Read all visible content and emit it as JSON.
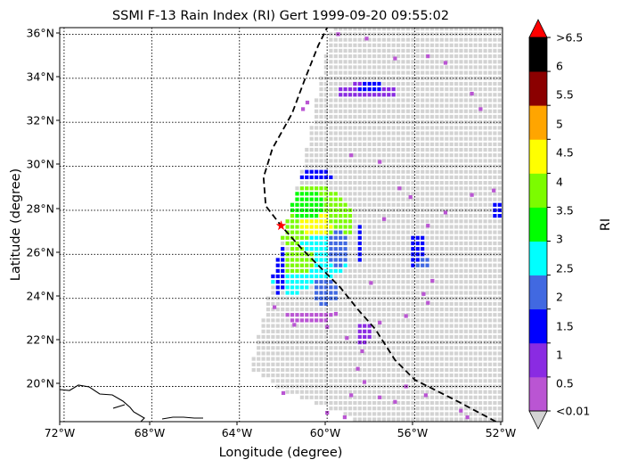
{
  "title": "SSMI F-13 Rain Index (RI) Gert 1999-09-20 09:55:02",
  "xlabel": "Longitude (degree)",
  "ylabel": "Latitude (degree)",
  "colorbar_label": "RI",
  "x_ticks": [
    "72°W",
    "68°W",
    "64°W",
    "60°W",
    "56°W",
    "52°W"
  ],
  "y_ticks": [
    "20°N",
    "22°N",
    "24°N",
    "26°N",
    "28°N",
    "30°N",
    "32°N",
    "34°N",
    "36°N"
  ],
  "colorbar_ticks": [
    "<0.01",
    "0.5",
    "1",
    "1.5",
    "2",
    "2.5",
    "3",
    "3.5",
    "4",
    "4.5",
    "5",
    "5.5",
    "6",
    ">6.5"
  ],
  "colors": {
    "swath_background": "#d3d3d3",
    "storm_marker": "#ff0000",
    "track_line": "#000000"
  },
  "chart_data": {
    "type": "map",
    "projection": "plate-carree",
    "lon_range": [
      -72.2,
      -52.0
    ],
    "lat_range": [
      18.4,
      36.3
    ],
    "grid": true,
    "colorbar": {
      "bins": [
        {
          "range": "<0.01",
          "color": "#d3d3d3"
        },
        {
          "range": "0.01-0.5",
          "color": "#ba55d3"
        },
        {
          "range": "0.5-1",
          "color": "#8a2be2"
        },
        {
          "range": "1-1.5",
          "color": "#0000ff"
        },
        {
          "range": "1.5-2",
          "color": "#4169e1"
        },
        {
          "range": "2-2.5",
          "color": "#00ffff"
        },
        {
          "range": "2.5-3",
          "color": "#00ff00"
        },
        {
          "range": "3-3.5",
          "color": "#7cfc00"
        },
        {
          "range": "3.5-4",
          "color": "#ffff00"
        },
        {
          "range": "4-4.5",
          "color": "#ffa500"
        },
        {
          "range": "4.5-5",
          "color": "#8b0000"
        },
        {
          "range": "5-6.5",
          "color": "#000000"
        },
        {
          "range": ">6.5",
          "color": "#ff0000"
        }
      ]
    },
    "storm_center": {
      "lon": -62.1,
      "lat": 27.3
    },
    "track": [
      {
        "lon": -52.3,
        "lat": 18.4
      },
      {
        "lon": -54.0,
        "lat": 19.3
      },
      {
        "lon": -56.0,
        "lat": 20.3
      },
      {
        "lon": -56.9,
        "lat": 21.2
      },
      {
        "lon": -57.8,
        "lat": 22.6
      },
      {
        "lon": -58.6,
        "lat": 23.5
      },
      {
        "lon": -59.4,
        "lat": 24.5
      },
      {
        "lon": -60.3,
        "lat": 25.4
      },
      {
        "lon": -61.2,
        "lat": 26.3
      },
      {
        "lon": -62.1,
        "lat": 27.3
      },
      {
        "lon": -62.8,
        "lat": 28.2
      },
      {
        "lon": -62.9,
        "lat": 29.5
      },
      {
        "lon": -62.5,
        "lat": 30.8
      },
      {
        "lon": -61.6,
        "lat": 32.4
      },
      {
        "lon": -61.0,
        "lat": 34.0
      },
      {
        "lon": -60.4,
        "lat": 35.5
      },
      {
        "lon": -60.0,
        "lat": 36.3
      }
    ],
    "swath_corners": [
      {
        "lon": -59.8,
        "lat": 36.3
      },
      {
        "lon": -52.0,
        "lat": 36.3
      },
      {
        "lon": -52.0,
        "lat": 18.4
      },
      {
        "lon": -54.5,
        "lat": 18.4
      },
      {
        "lon": -58.5,
        "lat": 18.4
      },
      {
        "lon": -62.0,
        "lat": 19.8
      },
      {
        "lon": -63.5,
        "lat": 20.8
      },
      {
        "lon": -62.0,
        "lat": 27.0
      },
      {
        "lon": -61.0,
        "lat": 30.5
      },
      {
        "lon": -60.5,
        "lat": 33.0
      }
    ],
    "rain_regions": [
      {
        "lon": -60.6,
        "lat": 27.5,
        "rlon": 1.8,
        "rlat": 1.6,
        "color": "#7cfc00"
      },
      {
        "lon": -60.5,
        "lat": 27.3,
        "rlon": 0.7,
        "rlat": 0.6,
        "color": "#ffff00"
      },
      {
        "lon": -60.9,
        "lat": 28.2,
        "rlon": 0.8,
        "rlat": 0.7,
        "color": "#00ff00"
      },
      {
        "lon": -60.4,
        "lat": 25.8,
        "rlon": 1.3,
        "rlat": 1.0,
        "color": "#00ffff"
      },
      {
        "lon": -61.6,
        "lat": 24.8,
        "rlon": 0.9,
        "rlat": 0.6,
        "color": "#00ffff"
      },
      {
        "lon": -61.3,
        "lat": 25.7,
        "rlon": 0.8,
        "rlat": 0.6,
        "color": "#7cfc00"
      },
      {
        "lon": -59.5,
        "lat": 26.3,
        "rlon": 0.5,
        "rlat": 0.9,
        "color": "#4169e1"
      },
      {
        "lon": -60.1,
        "lat": 24.3,
        "rlon": 0.6,
        "rlat": 0.6,
        "color": "#4169e1"
      },
      {
        "lon": -58.5,
        "lat": 26.5,
        "rlon": 0.2,
        "rlat": 1.0,
        "color": "#0000ff"
      },
      {
        "lon": -62.2,
        "lat": 25.3,
        "rlon": 0.3,
        "rlat": 1.2,
        "color": "#0000ff"
      },
      {
        "lon": -60.5,
        "lat": 29.6,
        "rlon": 0.8,
        "rlat": 0.2,
        "color": "#0000ff"
      },
      {
        "lon": -58.2,
        "lat": 33.4,
        "rlon": 1.4,
        "rlat": 0.4,
        "color": "#8a2be2"
      },
      {
        "lon": -58.0,
        "lat": 33.6,
        "rlon": 0.6,
        "rlat": 0.2,
        "color": "#0000ff"
      },
      {
        "lon": -55.9,
        "lat": 26.2,
        "rlon": 0.4,
        "rlat": 0.8,
        "color": "#0000ff"
      },
      {
        "lon": -55.6,
        "lat": 25.6,
        "rlon": 0.3,
        "rlat": 0.3,
        "color": "#4169e1"
      },
      {
        "lon": -52.2,
        "lat": 28.0,
        "rlon": 0.3,
        "rlat": 0.4,
        "color": "#0000ff"
      },
      {
        "lon": -60.8,
        "lat": 23.2,
        "rlon": 1.1,
        "rlat": 0.3,
        "color": "#ba55d3"
      },
      {
        "lon": -58.3,
        "lat": 22.4,
        "rlon": 0.3,
        "rlat": 0.6,
        "color": "#8a2be2"
      }
    ],
    "scattered_light_rain": [
      {
        "lon": -59.5,
        "lat": 36.0
      },
      {
        "lon": -58.2,
        "lat": 35.8
      },
      {
        "lon": -55.4,
        "lat": 35.0
      },
      {
        "lon": -54.6,
        "lat": 34.7
      },
      {
        "lon": -56.9,
        "lat": 34.9
      },
      {
        "lon": -53.0,
        "lat": 32.6
      },
      {
        "lon": -57.6,
        "lat": 30.2
      },
      {
        "lon": -58.9,
        "lat": 30.5
      },
      {
        "lon": -56.7,
        "lat": 29.0
      },
      {
        "lon": -56.2,
        "lat": 28.6
      },
      {
        "lon": -54.6,
        "lat": 27.9
      },
      {
        "lon": -53.4,
        "lat": 28.7
      },
      {
        "lon": -52.4,
        "lat": 28.9
      },
      {
        "lon": -57.4,
        "lat": 27.6
      },
      {
        "lon": -55.4,
        "lat": 27.3
      },
      {
        "lon": -55.2,
        "lat": 24.8
      },
      {
        "lon": -55.6,
        "lat": 24.2
      },
      {
        "lon": -56.4,
        "lat": 23.2
      },
      {
        "lon": -55.4,
        "lat": 23.8
      },
      {
        "lon": -58.0,
        "lat": 24.7
      },
      {
        "lon": -57.6,
        "lat": 22.9
      },
      {
        "lon": -59.1,
        "lat": 22.2
      },
      {
        "lon": -58.4,
        "lat": 21.6
      },
      {
        "lon": -58.6,
        "lat": 20.8
      },
      {
        "lon": -58.3,
        "lat": 20.2
      },
      {
        "lon": -58.9,
        "lat": 19.6
      },
      {
        "lon": -57.6,
        "lat": 19.5
      },
      {
        "lon": -56.4,
        "lat": 20.0
      },
      {
        "lon": -55.5,
        "lat": 19.6
      },
      {
        "lon": -56.9,
        "lat": 19.3
      },
      {
        "lon": -60.0,
        "lat": 18.8
      },
      {
        "lon": -59.2,
        "lat": 18.6
      },
      {
        "lon": -62.4,
        "lat": 23.6
      },
      {
        "lon": -61.5,
        "lat": 22.8
      },
      {
        "lon": -60.0,
        "lat": 22.7
      },
      {
        "lon": -59.6,
        "lat": 23.3
      },
      {
        "lon": -62.0,
        "lat": 19.7
      },
      {
        "lon": -53.9,
        "lat": 18.9
      },
      {
        "lon": -53.6,
        "lat": 18.6
      },
      {
        "lon": -60.9,
        "lat": 32.9
      },
      {
        "lon": -61.1,
        "lat": 32.6
      },
      {
        "lon": -53.4,
        "lat": 33.3
      }
    ]
  }
}
